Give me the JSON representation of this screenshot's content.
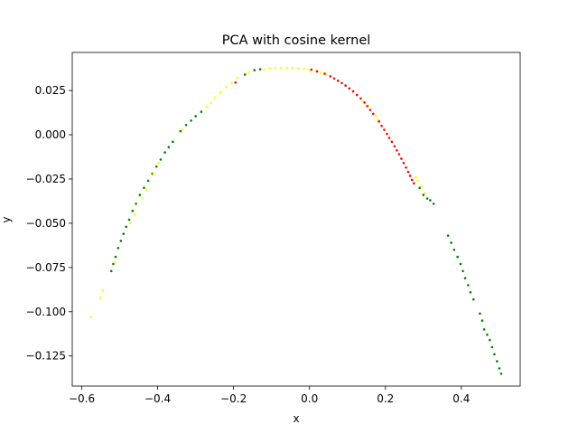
{
  "chart_data": {
    "type": "scatter",
    "title": "PCA with cosine kernel",
    "xlabel": "x",
    "ylabel": "y",
    "xlim": [
      -0.625,
      0.555
    ],
    "ylim": [
      -0.142,
      0.0465
    ],
    "xticks": [
      -0.6,
      -0.4,
      -0.2,
      0.0,
      0.2,
      0.4
    ],
    "xtick_labels": [
      "−0.6",
      "−0.4",
      "−0.2",
      "0.0",
      "0.2",
      "0.4"
    ],
    "yticks": [
      0.025,
      0.0,
      -0.025,
      -0.05,
      -0.075,
      -0.1,
      -0.125
    ],
    "ytick_labels": [
      "0.025",
      "0.000",
      "−0.025",
      "−0.050",
      "−0.075",
      "−0.100",
      "−0.125"
    ],
    "grid": false,
    "legend": "none",
    "series": [
      {
        "color": "#008000",
        "points": [
          [
            -0.522,
            -0.077
          ],
          [
            -0.517,
            -0.073
          ],
          [
            -0.511,
            -0.069
          ],
          [
            -0.504,
            -0.064
          ],
          [
            -0.497,
            -0.06
          ],
          [
            -0.49,
            -0.056
          ],
          [
            -0.483,
            -0.052
          ],
          [
            -0.475,
            -0.048
          ],
          [
            -0.466,
            -0.043
          ],
          [
            -0.457,
            -0.039
          ],
          [
            -0.447,
            -0.034
          ],
          [
            -0.436,
            -0.03
          ],
          [
            -0.425,
            -0.026
          ],
          [
            -0.414,
            -0.022
          ],
          [
            -0.403,
            -0.018
          ],
          [
            -0.392,
            -0.014
          ],
          [
            -0.381,
            -0.01
          ],
          [
            -0.371,
            -0.007
          ],
          [
            -0.36,
            -0.004
          ],
          [
            -0.34,
            0.002
          ],
          [
            -0.325,
            0.0055
          ],
          [
            -0.312,
            0.008
          ],
          [
            -0.3,
            0.0105
          ],
          [
            -0.285,
            0.013
          ],
          [
            -0.17,
            0.034
          ],
          [
            -0.145,
            0.0365
          ],
          [
            -0.13,
            0.037
          ],
          [
            0.29,
            -0.03
          ],
          [
            0.3,
            -0.034
          ],
          [
            0.31,
            -0.036
          ],
          [
            0.318,
            -0.037
          ],
          [
            0.327,
            -0.039
          ],
          [
            0.365,
            -0.057
          ],
          [
            0.373,
            -0.061
          ],
          [
            0.381,
            -0.065
          ],
          [
            0.39,
            -0.069
          ],
          [
            0.398,
            -0.073
          ],
          [
            0.404,
            -0.077
          ],
          [
            0.41,
            -0.081
          ],
          [
            0.418,
            -0.085
          ],
          [
            0.424,
            -0.089
          ],
          [
            0.432,
            -0.093
          ],
          [
            0.449,
            -0.101
          ],
          [
            0.455,
            -0.105
          ],
          [
            0.46,
            -0.11
          ],
          [
            0.468,
            -0.113
          ],
          [
            0.475,
            -0.116
          ],
          [
            0.481,
            -0.12
          ],
          [
            0.487,
            -0.124
          ],
          [
            0.494,
            -0.128
          ],
          [
            0.5,
            -0.132
          ],
          [
            0.505,
            -0.135
          ]
        ]
      },
      {
        "color": "#ffff00",
        "points": [
          [
            -0.575,
            -0.103
          ],
          [
            -0.55,
            -0.092
          ],
          [
            -0.545,
            -0.088
          ],
          [
            -0.514,
            -0.072
          ],
          [
            -0.472,
            -0.05
          ],
          [
            -0.46,
            -0.045
          ],
          [
            -0.44,
            -0.036
          ],
          [
            -0.43,
            -0.031
          ],
          [
            -0.41,
            -0.022
          ],
          [
            -0.398,
            -0.016
          ],
          [
            -0.335,
            0.003
          ],
          [
            -0.27,
            0.016
          ],
          [
            -0.26,
            0.018
          ],
          [
            -0.25,
            0.021
          ],
          [
            -0.235,
            0.024
          ],
          [
            -0.22,
            0.027
          ],
          [
            -0.205,
            0.029
          ],
          [
            -0.19,
            0.032
          ],
          [
            -0.16,
            0.035
          ],
          [
            -0.12,
            0.0368
          ],
          [
            -0.105,
            0.0375
          ],
          [
            -0.09,
            0.0377
          ],
          [
            -0.075,
            0.0378
          ],
          [
            -0.06,
            0.0378
          ],
          [
            -0.045,
            0.0377
          ],
          [
            -0.03,
            0.0375
          ],
          [
            -0.015,
            0.0372
          ],
          [
            0.0,
            0.0367
          ],
          [
            0.015,
            0.036
          ],
          [
            0.03,
            0.035
          ],
          [
            0.045,
            0.034
          ],
          [
            0.14,
            0.019
          ],
          [
            0.155,
            0.016
          ],
          [
            0.175,
            0.0105
          ],
          [
            0.18,
            0.0085
          ],
          [
            0.28,
            -0.024
          ],
          [
            0.285,
            -0.026
          ],
          [
            0.295,
            -0.029
          ],
          [
            0.305,
            -0.033
          ]
        ]
      },
      {
        "color": "#ff0000",
        "points": [
          [
            -0.195,
            0.0295
          ],
          [
            0.005,
            0.0368
          ],
          [
            0.02,
            0.0358
          ],
          [
            0.04,
            0.0345
          ],
          [
            0.055,
            0.033
          ],
          [
            0.065,
            0.0318
          ],
          [
            0.075,
            0.0305
          ],
          [
            0.085,
            0.0292
          ],
          [
            0.095,
            0.0278
          ],
          [
            0.105,
            0.0262
          ],
          [
            0.115,
            0.0245
          ],
          [
            0.125,
            0.0225
          ],
          [
            0.135,
            0.0205
          ],
          [
            0.145,
            0.0182
          ],
          [
            0.152,
            0.0162
          ],
          [
            0.16,
            0.014
          ],
          [
            0.168,
            0.0118
          ],
          [
            0.183,
            0.0075
          ],
          [
            0.19,
            0.005
          ],
          [
            0.197,
            0.0028
          ],
          [
            0.204,
            0.0005
          ],
          [
            0.21,
            -0.0018
          ],
          [
            0.217,
            -0.004
          ],
          [
            0.224,
            -0.0065
          ],
          [
            0.23,
            -0.0088
          ],
          [
            0.236,
            -0.011
          ],
          [
            0.242,
            -0.0135
          ],
          [
            0.248,
            -0.016
          ],
          [
            0.254,
            -0.0185
          ],
          [
            0.26,
            -0.021
          ],
          [
            0.265,
            -0.0232
          ],
          [
            0.27,
            -0.0255
          ],
          [
            0.275,
            -0.0275
          ]
        ]
      }
    ]
  }
}
